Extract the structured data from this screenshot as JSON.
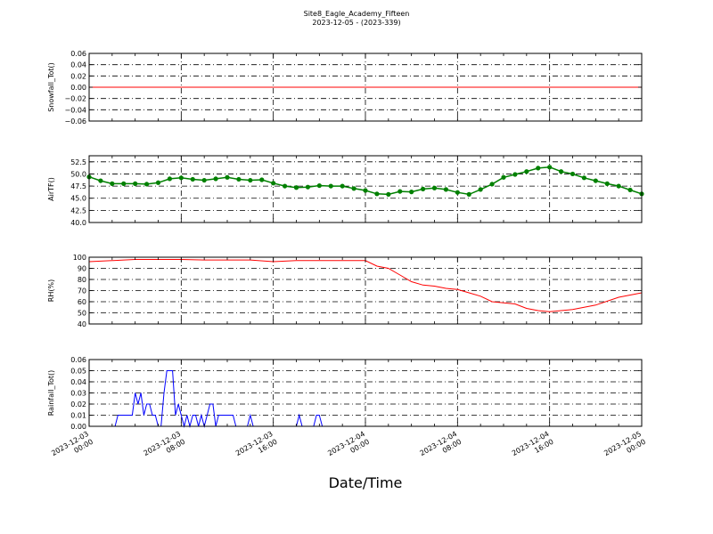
{
  "title": "Site8_Eagle_Academy_Fifteen",
  "subtitle": "2023-12-05 - (2023-339)",
  "chart_data": [
    {
      "type": "line",
      "ylabel": "Snowfall_Tot()",
      "ylim": [
        -0.06,
        0.06
      ],
      "yticks": [
        -0.06,
        -0.04,
        -0.02,
        0.0,
        0.02,
        0.04,
        0.06
      ],
      "ytick_labels": [
        "−0.06",
        "−0.04",
        "−0.02",
        "0.00",
        "0.02",
        "0.04",
        "0.06"
      ],
      "color": "#ff0000",
      "marker": false,
      "grid": true,
      "x": [
        "2023-12-03 00:00",
        "2023-12-05 00:00"
      ],
      "y": [
        0.0,
        0.0
      ]
    },
    {
      "type": "line",
      "ylabel": "AirTF()",
      "ylim": [
        40.0,
        53.75
      ],
      "yticks": [
        40.0,
        42.5,
        45.0,
        47.5,
        50.0,
        52.5
      ],
      "ytick_labels": [
        "40.0",
        "42.5",
        "45.0",
        "47.5",
        "50.0",
        "52.5"
      ],
      "color": "#008000",
      "marker": true,
      "grid": true,
      "x": [
        "2023-12-03 00:00",
        "2023-12-03 01:00",
        "2023-12-03 02:00",
        "2023-12-03 03:00",
        "2023-12-03 04:00",
        "2023-12-03 05:00",
        "2023-12-03 06:00",
        "2023-12-03 07:00",
        "2023-12-03 08:00",
        "2023-12-03 09:00",
        "2023-12-03 10:00",
        "2023-12-03 11:00",
        "2023-12-03 12:00",
        "2023-12-03 13:00",
        "2023-12-03 14:00",
        "2023-12-03 15:00",
        "2023-12-03 16:00",
        "2023-12-03 17:00",
        "2023-12-03 18:00",
        "2023-12-03 19:00",
        "2023-12-03 20:00",
        "2023-12-03 21:00",
        "2023-12-03 22:00",
        "2023-12-03 23:00",
        "2023-12-04 00:00",
        "2023-12-04 01:00",
        "2023-12-04 02:00",
        "2023-12-04 03:00",
        "2023-12-04 04:00",
        "2023-12-04 05:00",
        "2023-12-04 06:00",
        "2023-12-04 07:00",
        "2023-12-04 08:00",
        "2023-12-04 09:00",
        "2023-12-04 10:00",
        "2023-12-04 11:00",
        "2023-12-04 12:00",
        "2023-12-04 13:00",
        "2023-12-04 14:00",
        "2023-12-04 15:00",
        "2023-12-04 16:00",
        "2023-12-04 17:00",
        "2023-12-04 18:00",
        "2023-12-04 19:00",
        "2023-12-04 20:00",
        "2023-12-04 21:00",
        "2023-12-04 22:00",
        "2023-12-04 23:00",
        "2023-12-05 00:00"
      ],
      "y": [
        49.4,
        48.6,
        48.0,
        48.0,
        48.0,
        47.9,
        48.2,
        49.0,
        49.2,
        48.9,
        48.7,
        49.0,
        49.3,
        48.9,
        48.7,
        48.8,
        48.1,
        47.5,
        47.2,
        47.3,
        47.6,
        47.5,
        47.5,
        47.0,
        46.6,
        45.9,
        45.8,
        46.4,
        46.3,
        46.9,
        47.1,
        46.8,
        46.2,
        45.8,
        46.8,
        47.9,
        49.3,
        49.9,
        50.5,
        51.2,
        51.4,
        50.5,
        50.0,
        49.2,
        48.6,
        48.0,
        47.5,
        46.7,
        45.9
      ]
    },
    {
      "type": "line",
      "ylabel": "RH(%)",
      "ylim": [
        40,
        100
      ],
      "yticks": [
        40,
        50,
        60,
        70,
        80,
        90,
        100
      ],
      "ytick_labels": [
        "40",
        "50",
        "60",
        "70",
        "80",
        "90",
        "100"
      ],
      "color": "#ff0000",
      "marker": false,
      "grid": true,
      "x": [
        "2023-12-03 00:00",
        "2023-12-03 02:00",
        "2023-12-03 04:00",
        "2023-12-03 06:00",
        "2023-12-03 08:00",
        "2023-12-03 10:00",
        "2023-12-03 12:00",
        "2023-12-03 14:00",
        "2023-12-03 16:00",
        "2023-12-03 18:00",
        "2023-12-03 20:00",
        "2023-12-03 22:00",
        "2023-12-04 00:00",
        "2023-12-04 01:00",
        "2023-12-04 02:00",
        "2023-12-04 03:00",
        "2023-12-04 04:00",
        "2023-12-04 05:00",
        "2023-12-04 06:00",
        "2023-12-04 07:00",
        "2023-12-04 08:00",
        "2023-12-04 09:00",
        "2023-12-04 10:00",
        "2023-12-04 11:00",
        "2023-12-04 12:00",
        "2023-12-04 13:00",
        "2023-12-04 14:00",
        "2023-12-04 15:00",
        "2023-12-04 16:00",
        "2023-12-04 18:00",
        "2023-12-04 20:00",
        "2023-12-04 22:00",
        "2023-12-05 00:00"
      ],
      "y": [
        96,
        97,
        98,
        98,
        98,
        97.5,
        97.5,
        97.5,
        96,
        97,
        97,
        97,
        97,
        92,
        90,
        84,
        78,
        75,
        74,
        72,
        71,
        68,
        65,
        60,
        59,
        58,
        54,
        52,
        51,
        53,
        57,
        64,
        68
      ]
    },
    {
      "type": "line",
      "ylabel": "Rainfall_Tot()",
      "ylim": [
        0.0,
        0.06
      ],
      "yticks": [
        0.0,
        0.01,
        0.02,
        0.03,
        0.04,
        0.05,
        0.06
      ],
      "ytick_labels": [
        "0.00",
        "0.01",
        "0.02",
        "0.03",
        "0.04",
        "0.05",
        "0.06"
      ],
      "color": "#0000ff",
      "marker": false,
      "grid": true,
      "x": [
        "2023-12-03 00:00",
        "2023-12-03 02:15",
        "2023-12-03 02:30",
        "2023-12-03 03:45",
        "2023-12-03 04:00",
        "2023-12-03 04:15",
        "2023-12-03 04:30",
        "2023-12-03 04:45",
        "2023-12-03 05:00",
        "2023-12-03 05:15",
        "2023-12-03 05:30",
        "2023-12-03 05:45",
        "2023-12-03 06:00",
        "2023-12-03 06:15",
        "2023-12-03 06:30",
        "2023-12-03 06:45",
        "2023-12-03 07:00",
        "2023-12-03 07:15",
        "2023-12-03 07:30",
        "2023-12-03 07:45",
        "2023-12-03 08:00",
        "2023-12-03 08:15",
        "2023-12-03 08:30",
        "2023-12-03 08:45",
        "2023-12-03 09:00",
        "2023-12-03 09:15",
        "2023-12-03 09:30",
        "2023-12-03 09:45",
        "2023-12-03 10:00",
        "2023-12-03 10:15",
        "2023-12-03 10:30",
        "2023-12-03 10:45",
        "2023-12-03 11:00",
        "2023-12-03 11:15",
        "2023-12-03 11:30",
        "2023-12-03 11:45",
        "2023-12-03 12:00",
        "2023-12-03 12:15",
        "2023-12-03 12:30",
        "2023-12-03 12:45",
        "2023-12-03 13:45",
        "2023-12-03 14:00",
        "2023-12-03 14:15",
        "2023-12-03 14:30",
        "2023-12-03 14:45",
        "2023-12-03 18:00",
        "2023-12-03 18:15",
        "2023-12-03 18:30",
        "2023-12-03 19:30",
        "2023-12-03 19:45",
        "2023-12-03 20:00",
        "2023-12-03 20:15",
        "2023-12-05 00:00"
      ],
      "y": [
        0.0,
        0.0,
        0.01,
        0.01,
        0.03,
        0.02,
        0.03,
        0.01,
        0.02,
        0.02,
        0.01,
        0.01,
        0.0,
        0.0,
        0.03,
        0.05,
        0.05,
        0.05,
        0.01,
        0.02,
        0.01,
        0.0,
        0.01,
        0.0,
        0.01,
        0.01,
        0.0,
        0.01,
        0.0,
        0.01,
        0.02,
        0.02,
        0.0,
        0.01,
        0.01,
        0.01,
        0.01,
        0.01,
        0.01,
        0.0,
        0.0,
        0.01,
        0.0,
        0.0,
        0.0,
        0.0,
        0.01,
        0.0,
        0.0,
        0.01,
        0.01,
        0.0,
        0.0
      ]
    }
  ],
  "x_axis": {
    "label": "Date/Time",
    "range": [
      "2023-12-03 00:00",
      "2023-12-05 00:00"
    ],
    "ticks": [
      "2023-12-03 00:00",
      "2023-12-03 08:00",
      "2023-12-03 16:00",
      "2023-12-04 00:00",
      "2023-12-04 08:00",
      "2023-12-04 16:00",
      "2023-12-05 00:00"
    ],
    "tick_labels": [
      [
        "2023-12-03",
        "00:00"
      ],
      [
        "2023-12-03",
        "08:00"
      ],
      [
        "2023-12-03",
        "16:00"
      ],
      [
        "2023-12-04",
        "00:00"
      ],
      [
        "2023-12-04",
        "08:00"
      ],
      [
        "2023-12-04",
        "16:00"
      ],
      [
        "2023-12-05",
        "00:00"
      ]
    ]
  }
}
